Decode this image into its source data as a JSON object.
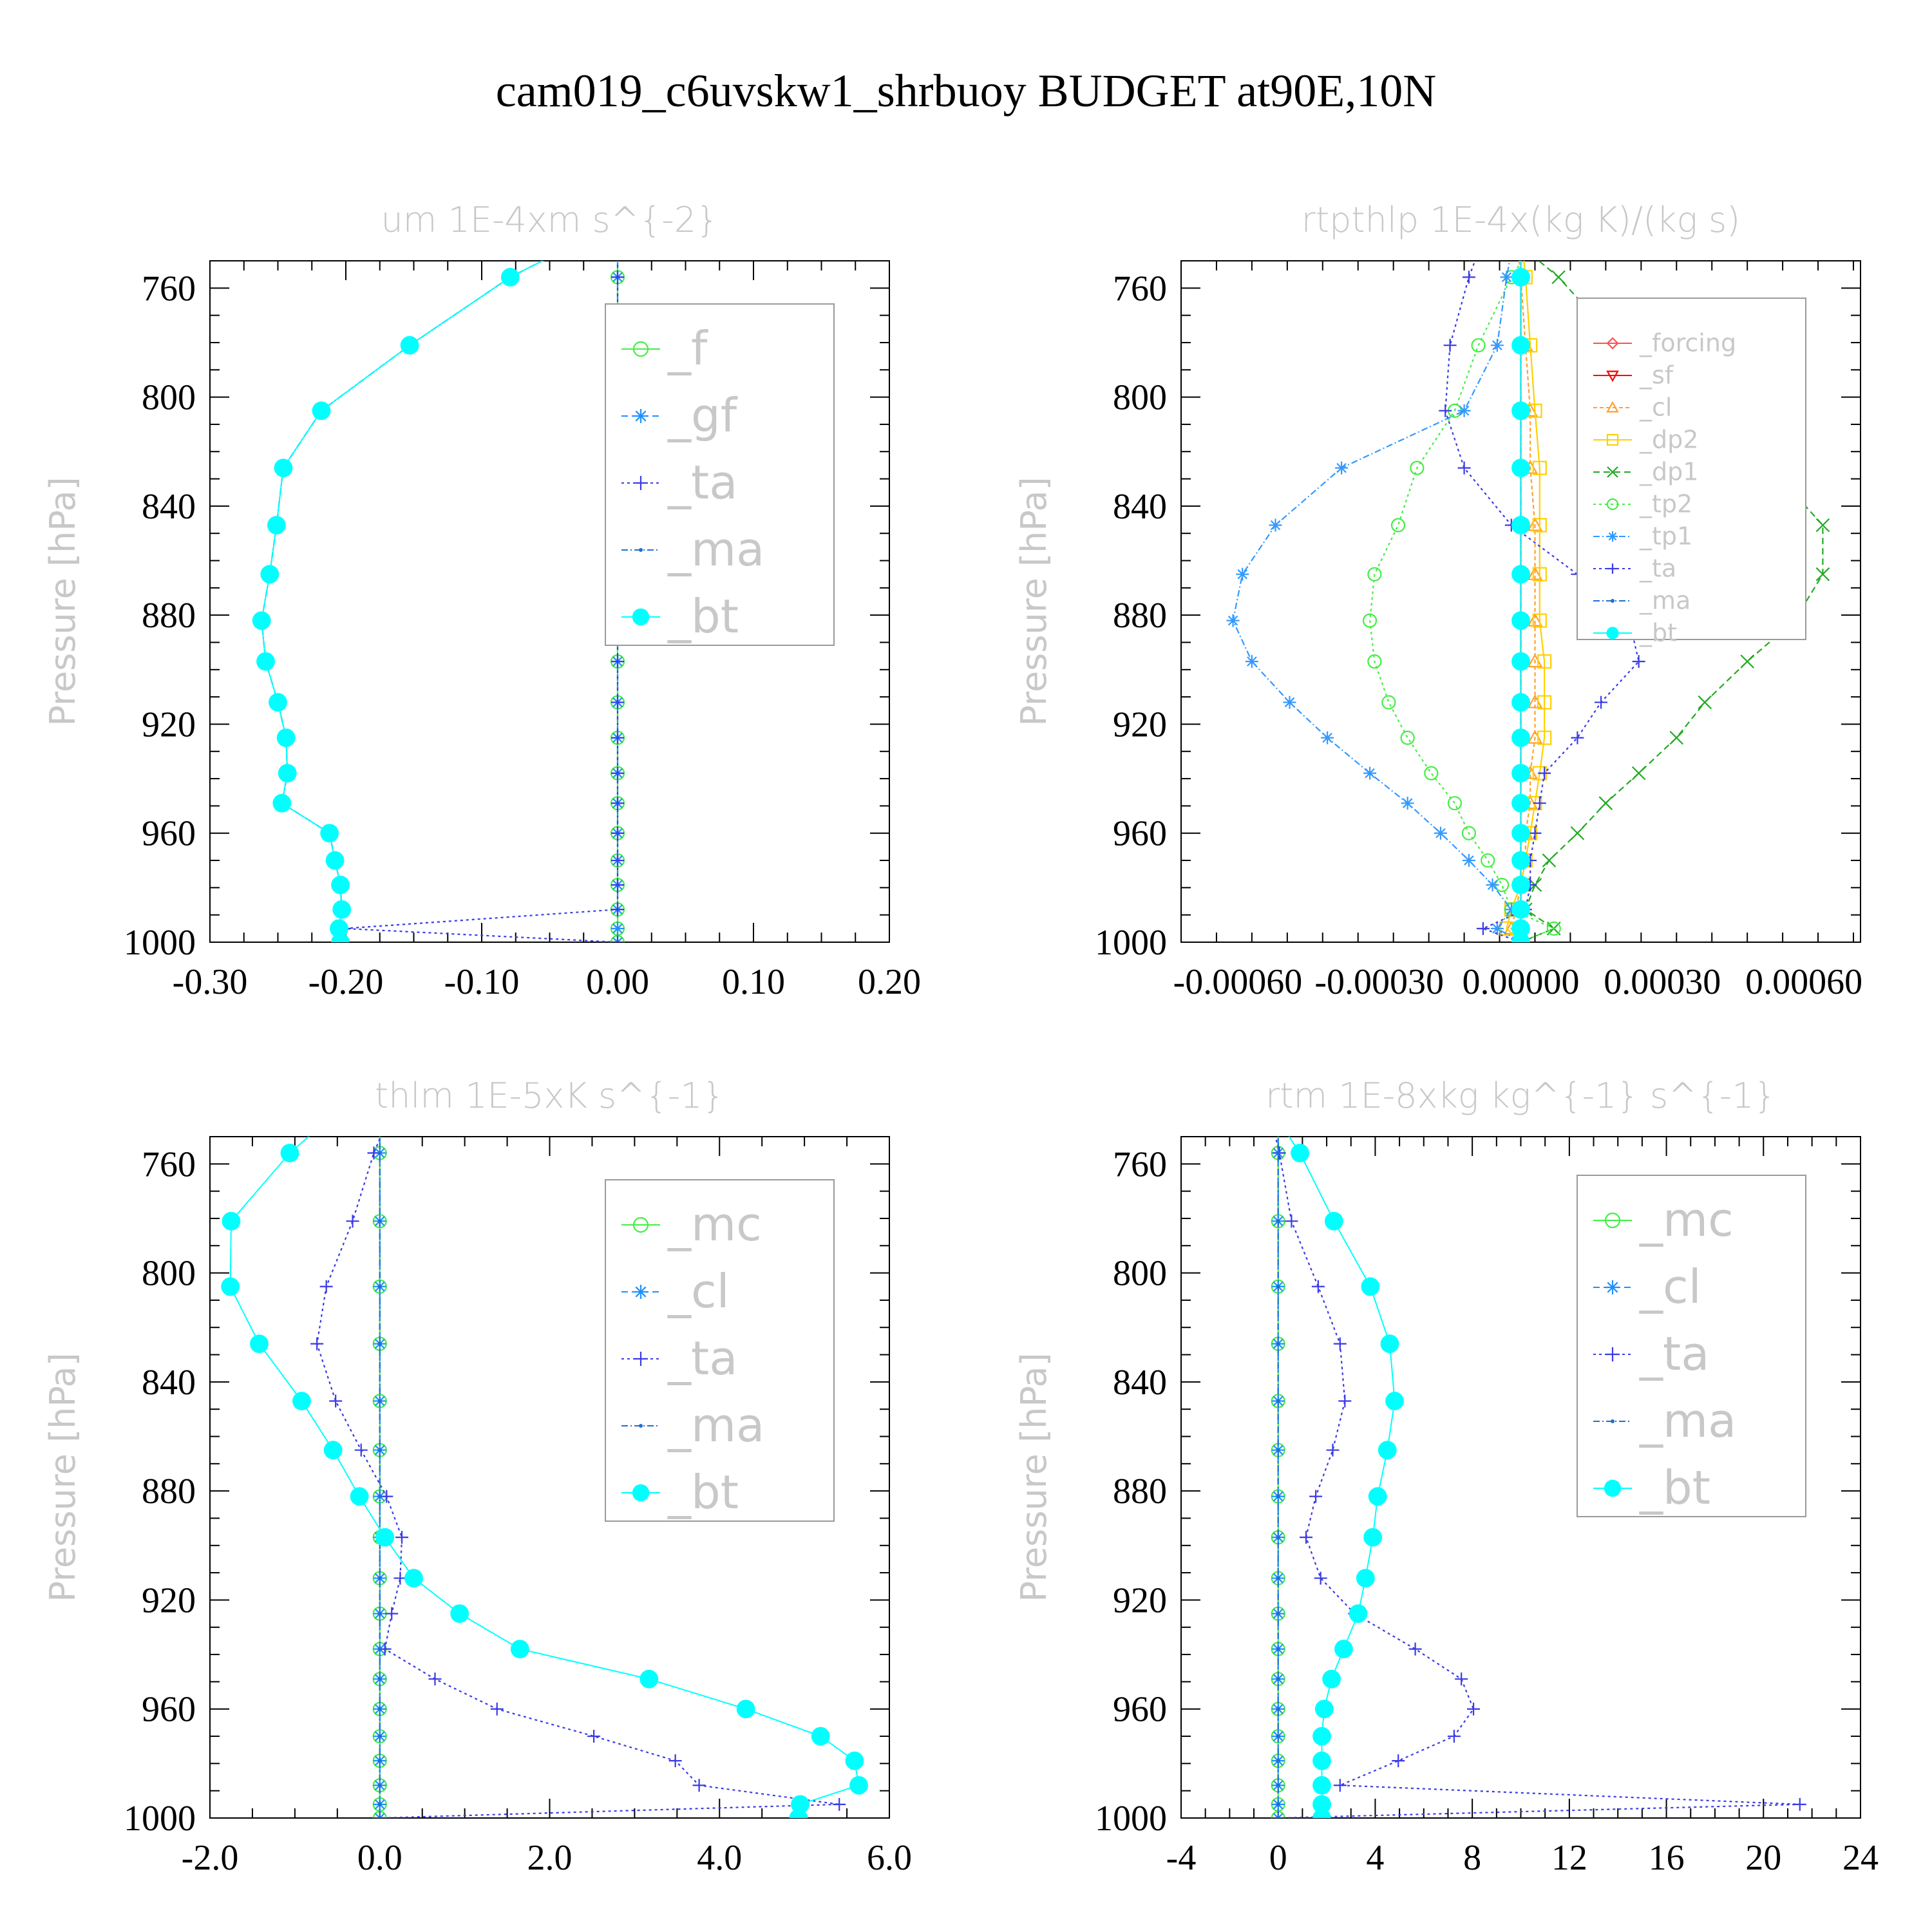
{
  "title": "cam019_c6uvskw1_shrbuoy  BUDGET at90E,10N",
  "ylabel": "Pressure  [hPa]",
  "colors": {
    "_f": "#44ee44",
    "_gf": "#1e90ff",
    "_ta": "#3a3ae8",
    "_ma": "#1f6fd0",
    "_bt": "#00ffff",
    "_forcing": "#ff5050",
    "_sf": "#ff0000",
    "_cl": "#ffa030",
    "_dp2": "#ffd000",
    "_dp1": "#22aa22",
    "_tp2": "#44ee44",
    "_tp1": "#3399ff",
    "_mc": "#44ee44",
    "_cl_blue": "#1e90ff"
  },
  "chart_data": [
    {
      "type": "line",
      "title": "um   1E-4xm s^{-2}",
      "xlabel": "",
      "ylabel": "Pressure  [hPa]",
      "xlim": [
        -0.3,
        0.2
      ],
      "ylim": [
        1000,
        750
      ],
      "xticks": [
        "-0.30",
        "-0.20",
        "-0.10",
        "0.00",
        "0.10",
        "0.20"
      ],
      "xtick_values": [
        -0.3,
        -0.2,
        -0.1,
        0.0,
        0.1,
        0.2
      ],
      "yticks": [
        "760",
        "800",
        "840",
        "880",
        "920",
        "960",
        "1000"
      ],
      "ytick_values": [
        760,
        800,
        840,
        880,
        920,
        960,
        1000
      ],
      "legend": "upper-right-inset",
      "p": [
        756,
        781,
        805,
        826,
        847,
        865,
        882,
        897,
        912,
        925,
        938,
        949,
        960,
        970,
        979,
        988,
        995,
        1000
      ],
      "series": [
        {
          "name": "_f",
          "color": "#44ee44",
          "marker": "circle-open",
          "dash": "",
          "values": [
            0,
            0,
            0,
            0,
            0,
            0,
            0,
            0,
            0,
            0,
            0,
            0,
            0,
            0,
            0,
            0,
            0,
            0
          ]
        },
        {
          "name": "_gf",
          "color": "#1e90ff",
          "marker": "asterisk",
          "dash": "10,6",
          "values": [
            0,
            0,
            0,
            0,
            0,
            0,
            0,
            0,
            0,
            0,
            0,
            0,
            0,
            0,
            0,
            0,
            0,
            0
          ]
        },
        {
          "name": "_ta",
          "color": "#3a3ae8",
          "marker": "plus",
          "dash": "4,5",
          "values": [
            0,
            0,
            0,
            0,
            0,
            0,
            0,
            0,
            0,
            0,
            0,
            0,
            0,
            0,
            0,
            0,
            -0.201,
            0
          ]
        },
        {
          "name": "_ma",
          "color": "#1f6fd0",
          "marker": "dot",
          "dash": "10,4,2,4",
          "values": [
            -0.079,
            -0.153,
            -0.218,
            -0.246,
            -0.251,
            -0.256,
            -0.262,
            -0.259,
            -0.25,
            -0.244,
            -0.243,
            -0.247,
            -0.212,
            -0.208,
            -0.204,
            -0.203,
            -0.205,
            -0.204
          ]
        },
        {
          "name": "_bt",
          "color": "#00ffff",
          "marker": "dot-filled",
          "dash": "",
          "values": [
            -0.079,
            -0.153,
            -0.218,
            -0.246,
            -0.251,
            -0.256,
            -0.262,
            -0.259,
            -0.25,
            -0.244,
            -0.243,
            -0.247,
            -0.212,
            -0.208,
            -0.204,
            -0.203,
            -0.205,
            -0.204
          ]
        }
      ]
    },
    {
      "type": "line",
      "title": "rtpthlp   1E-4x(kg K)/(kg s)",
      "xlabel": "",
      "ylabel": "Pressure  [hPa]",
      "xlim": [
        -0.00072,
        0.00072
      ],
      "ylim": [
        1000,
        750
      ],
      "xticks": [
        "-0.00060",
        "-0.00030",
        "0.00000",
        "0.00030",
        "0.00060"
      ],
      "xtick_values": [
        -0.0006,
        -0.0003,
        0.0,
        0.0003,
        0.0006
      ],
      "yticks": [
        "760",
        "800",
        "840",
        "880",
        "920",
        "960",
        "1000"
      ],
      "ytick_values": [
        760,
        800,
        840,
        880,
        920,
        960,
        1000
      ],
      "legend": "upper-right-inset",
      "p": [
        756,
        781,
        805,
        826,
        847,
        865,
        882,
        897,
        912,
        925,
        938,
        949,
        960,
        970,
        979,
        988,
        995,
        1000
      ],
      "series": [
        {
          "name": "_forcing",
          "color": "#ff5050",
          "marker": "diamond-open",
          "dash": "",
          "values": [
            0,
            0,
            0,
            0,
            0,
            0,
            0,
            0,
            0,
            0,
            0,
            0,
            0,
            0,
            0,
            0,
            0,
            0
          ]
        },
        {
          "name": "_sf",
          "color": "#ff0000",
          "marker": "triangle-down",
          "dash": "",
          "values": [
            0,
            0,
            0,
            0,
            0,
            0,
            0,
            0,
            0,
            0,
            0,
            0,
            0,
            0,
            0,
            0,
            0,
            0
          ]
        },
        {
          "name": "_cl",
          "color": "#ffa030",
          "marker": "triangle-up",
          "dash": "6,4",
          "values": [
            0,
            1e-05,
            2e-05,
            2e-05,
            3e-05,
            3e-05,
            3e-05,
            3e-05,
            3e-05,
            3e-05,
            2e-05,
            2e-05,
            1e-05,
            1e-05,
            0,
            -1e-05,
            -2e-05,
            0
          ]
        },
        {
          "name": "_dp2",
          "color": "#ffd000",
          "marker": "square-open",
          "dash": "",
          "values": [
            1e-05,
            2e-05,
            3e-05,
            4e-05,
            4e-05,
            4e-05,
            4e-05,
            5e-05,
            5e-05,
            5e-05,
            4e-05,
            3e-05,
            2e-05,
            1e-05,
            0,
            -2e-05,
            -3e-05,
            0
          ]
        },
        {
          "name": "_dp1",
          "color": "#22aa22",
          "marker": "x",
          "dash": "10,6",
          "values": [
            8e-05,
            0.00021,
            0.00035,
            0.00053,
            0.00064,
            0.00064,
            0.00058,
            0.00048,
            0.00039,
            0.00033,
            0.00025,
            0.00018,
            0.00012,
            6e-05,
            3e-05,
            1e-05,
            7e-05,
            0
          ]
        },
        {
          "name": "_tp2",
          "color": "#44ee44",
          "marker": "circle-open",
          "dash": "4,5",
          "values": [
            -2e-05,
            -9e-05,
            -0.00014,
            -0.00022,
            -0.00026,
            -0.00031,
            -0.00032,
            -0.00031,
            -0.00028,
            -0.00024,
            -0.00019,
            -0.00014,
            -0.00011,
            -7e-05,
            -4e-05,
            -2e-05,
            7e-05,
            0
          ]
        },
        {
          "name": "_tp1",
          "color": "#3399ff",
          "marker": "asterisk",
          "dash": "10,4,2,4",
          "values": [
            -3e-05,
            -5e-05,
            -0.00012,
            -0.00038,
            -0.00052,
            -0.00059,
            -0.00061,
            -0.00057,
            -0.00049,
            -0.00041,
            -0.00032,
            -0.00024,
            -0.00017,
            -0.00011,
            -6e-05,
            -2e-05,
            -5e-05,
            0
          ]
        },
        {
          "name": "_ta",
          "color": "#3a3ae8",
          "marker": "plus",
          "dash": "4,5",
          "values": [
            -0.00011,
            -0.00015,
            -0.00016,
            -0.00012,
            -2e-05,
            0.00012,
            0.00023,
            0.00025,
            0.00017,
            0.00012,
            5e-05,
            4e-05,
            3e-05,
            2e-05,
            2e-05,
            1e-05,
            -8e-05,
            0
          ]
        },
        {
          "name": "_ma",
          "color": "#1f6fd0",
          "marker": "dot",
          "dash": "10,4,2,4",
          "values": [
            0,
            0,
            0,
            0,
            0,
            0,
            0,
            0,
            0,
            0,
            0,
            0,
            0,
            0,
            0,
            0,
            0,
            0
          ]
        },
        {
          "name": "_bt",
          "color": "#00ffff",
          "marker": "dot-filled",
          "dash": "",
          "values": [
            0,
            0,
            0,
            0,
            0,
            0,
            0,
            0,
            0,
            0,
            0,
            0,
            0,
            0,
            0,
            0,
            0,
            0
          ]
        }
      ]
    },
    {
      "type": "line",
      "title": "thlm   1E-5xK s^{-1}",
      "xlabel": "",
      "ylabel": "Pressure  [hPa]",
      "xlim": [
        -2.0,
        6.0
      ],
      "ylim": [
        1000,
        750
      ],
      "xticks": [
        "-2.0",
        "0.0",
        "2.0",
        "4.0",
        "6.0"
      ],
      "xtick_values": [
        -2.0,
        0.0,
        2.0,
        4.0,
        6.0
      ],
      "yticks": [
        "760",
        "800",
        "840",
        "880",
        "920",
        "960",
        "1000"
      ],
      "ytick_values": [
        760,
        800,
        840,
        880,
        920,
        960,
        1000
      ],
      "legend": "upper-right-inset",
      "p": [
        756,
        781,
        805,
        826,
        847,
        865,
        882,
        897,
        912,
        925,
        938,
        949,
        960,
        970,
        979,
        988,
        995,
        1000
      ],
      "series": [
        {
          "name": "_mc",
          "color": "#44ee44",
          "marker": "circle-open",
          "dash": "",
          "values": [
            0,
            0,
            0,
            0,
            0,
            0,
            0,
            0,
            0,
            0,
            0,
            0,
            0,
            0,
            0,
            0,
            0,
            0
          ]
        },
        {
          "name": "_cl",
          "color": "#1e90ff",
          "marker": "asterisk",
          "dash": "10,6",
          "values": [
            0,
            0,
            0,
            0,
            0,
            0,
            0,
            0,
            0,
            0,
            0,
            0,
            0,
            0,
            0,
            0,
            0,
            0
          ]
        },
        {
          "name": "_ta",
          "color": "#3a3ae8",
          "marker": "plus",
          "dash": "4,5",
          "values": [
            -0.07,
            -0.32,
            -0.63,
            -0.74,
            -0.52,
            -0.22,
            0.08,
            0.26,
            0.24,
            0.14,
            0.06,
            0.65,
            1.38,
            2.52,
            3.48,
            3.76,
            5.41,
            0.0
          ]
        },
        {
          "name": "_ma",
          "color": "#1f6fd0",
          "marker": "dot",
          "dash": "10,4,2,4",
          "values": [
            0,
            0,
            0,
            0,
            0,
            0,
            0,
            0,
            0,
            0,
            0,
            0,
            0,
            0,
            0,
            0,
            0,
            0
          ]
        },
        {
          "name": "_bt",
          "color": "#00ffff",
          "marker": "dot-filled",
          "dash": "",
          "values": [
            -1.06,
            -1.75,
            -1.76,
            -1.42,
            -0.92,
            -0.55,
            -0.24,
            0.06,
            0.4,
            0.94,
            1.65,
            3.17,
            4.31,
            5.19,
            5.59,
            5.64,
            4.95,
            4.93
          ]
        }
      ]
    },
    {
      "type": "line",
      "title": "rtm   1E-8xkg kg^{-1} s^{-1}",
      "xlabel": "",
      "ylabel": "Pressure  [hPa]",
      "xlim": [
        -4,
        24
      ],
      "ylim": [
        1000,
        750
      ],
      "xticks": [
        "-4",
        "0",
        "4",
        "8",
        "12",
        "16",
        "20",
        "24"
      ],
      "xtick_values": [
        -4,
        0,
        4,
        8,
        12,
        16,
        20,
        24
      ],
      "yticks": [
        "760",
        "800",
        "840",
        "880",
        "920",
        "960",
        "1000"
      ],
      "ytick_values": [
        760,
        800,
        840,
        880,
        920,
        960,
        1000
      ],
      "legend": "upper-right-inset",
      "p": [
        756,
        781,
        805,
        826,
        847,
        865,
        882,
        897,
        912,
        925,
        938,
        949,
        960,
        970,
        979,
        988,
        995,
        1000
      ],
      "series": [
        {
          "name": "_mc",
          "color": "#44ee44",
          "marker": "circle-open",
          "dash": "",
          "values": [
            0,
            0,
            0,
            0,
            0,
            0,
            0,
            0,
            0,
            0,
            0,
            0,
            0,
            0,
            0,
            0,
            0,
            0
          ]
        },
        {
          "name": "_cl",
          "color": "#1e90ff",
          "marker": "asterisk",
          "dash": "10,6",
          "values": [
            0,
            0,
            0,
            0,
            0,
            0,
            0,
            0,
            0,
            0,
            0,
            0,
            0,
            0,
            0,
            0,
            0,
            0
          ]
        },
        {
          "name": "_ta",
          "color": "#3a3ae8",
          "marker": "plus",
          "dash": "4,5",
          "values": [
            0.05,
            0.55,
            1.65,
            2.55,
            2.75,
            2.25,
            1.55,
            1.15,
            1.75,
            3.15,
            5.65,
            7.55,
            8.05,
            7.25,
            4.95,
            2.55,
            21.5,
            0.0
          ]
        },
        {
          "name": "_ma",
          "color": "#1f6fd0",
          "marker": "dot",
          "dash": "10,4,2,4",
          "values": [
            0,
            0,
            0,
            0,
            0,
            0,
            0,
            0,
            0,
            0,
            0,
            0,
            0,
            0,
            0,
            0,
            0,
            0
          ]
        },
        {
          "name": "_bt",
          "color": "#00ffff",
          "marker": "dot-filled",
          "dash": "",
          "values": [
            0.9,
            2.3,
            3.8,
            4.6,
            4.8,
            4.5,
            4.1,
            3.9,
            3.6,
            3.3,
            2.7,
            2.2,
            1.9,
            1.8,
            1.8,
            1.8,
            1.8,
            1.8
          ]
        }
      ]
    }
  ]
}
